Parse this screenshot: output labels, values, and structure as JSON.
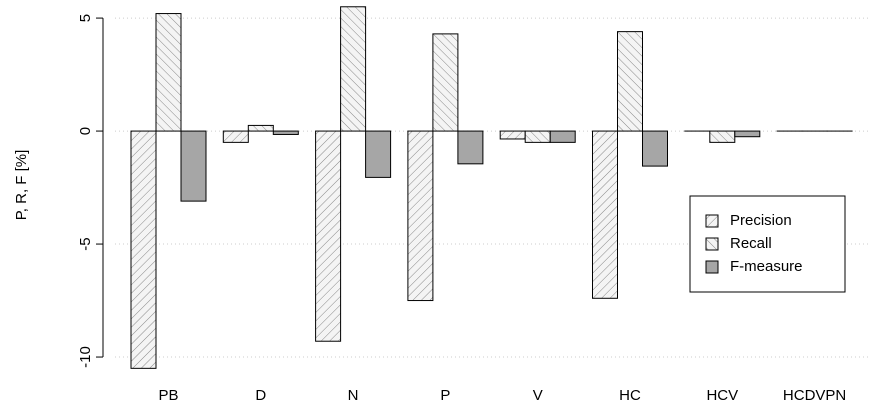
{
  "chart_data": {
    "type": "bar",
    "ylabel": "P, R, F [%]",
    "categories": [
      "PB",
      "D",
      "N",
      "P",
      "V",
      "HC",
      "HCV",
      "HCDVPN"
    ],
    "series": [
      {
        "name": "Precision",
        "color": "#ececec",
        "hatch": "/",
        "values": [
          -10.5,
          -0.5,
          -9.3,
          -7.5,
          -0.35,
          -7.4,
          0,
          0
        ]
      },
      {
        "name": "Recall",
        "color": "#ececec",
        "hatch": "\\",
        "values": [
          5.2,
          0.25,
          5.5,
          4.3,
          -0.5,
          4.4,
          -0.5,
          0
        ]
      },
      {
        "name": "F-measure",
        "color": "#a6a6a6",
        "values": [
          -3.1,
          -0.15,
          -2.05,
          -1.45,
          -0.5,
          -1.55,
          -0.25,
          0
        ]
      }
    ],
    "ylim": [
      -10.6,
      5.8
    ],
    "yticks": [
      -10,
      -5,
      0,
      5
    ],
    "grid": true,
    "legend": "lower right"
  }
}
